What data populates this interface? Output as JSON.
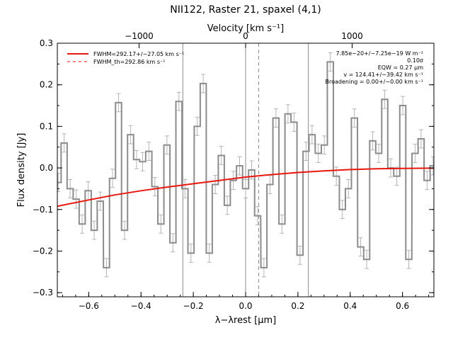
{
  "chart_data": {
    "type": "line",
    "title": "NII122, Raster 21, spaxel (4,1)",
    "xlabel": "λ−λrest [μm]",
    "ylabel": "Flux density [Jy]",
    "top_axis_label": "Velocity [km s⁻¹]",
    "xlim": [
      -0.72,
      0.72
    ],
    "ylim": [
      -0.31,
      0.3
    ],
    "x_ticks": [
      -0.6,
      -0.4,
      -0.2,
      0.0,
      0.2,
      0.4,
      0.6
    ],
    "x_tick_labels": [
      "−0.6",
      "−0.4",
      "−0.2",
      "0.0",
      "0.2",
      "0.4",
      "0.6"
    ],
    "y_ticks": [
      -0.3,
      -0.2,
      -0.1,
      0.0,
      0.1,
      0.2,
      0.3
    ],
    "y_tick_labels": [
      "−0.3",
      "−0.2",
      "−0.1",
      "0.0",
      "0.1",
      "0.2",
      "0.3"
    ],
    "top_ticks": [
      -1000,
      0,
      1000
    ],
    "top_tick_labels": [
      "−1000",
      "0",
      "1000"
    ],
    "top_ticks_x": [
      -0.4074,
      0.0,
      0.4074
    ],
    "vertical_lines": [
      {
        "x": -0.24,
        "style": "solid"
      },
      {
        "x": 0.0,
        "style": "solid"
      },
      {
        "x": 0.05,
        "style": "dashed"
      },
      {
        "x": 0.24,
        "style": "solid"
      }
    ],
    "legend": {
      "position": "top-left",
      "entries": [
        {
          "label": "FWHM=292.17+/−27.05 km s⁻¹",
          "style": "solid",
          "color": "#e8170f"
        },
        {
          "label": "FWHM_th=292.86 km s⁻¹",
          "style": "dashed",
          "color": "#e8170f"
        }
      ]
    },
    "annotations": [
      "7.85e−20+/−7.25e−19 W m⁻²",
      "0.10σ",
      "EQW = 0.27 μm",
      "v = 124.41+/−39.42 km s⁻¹",
      "Broadening = 0.00+/−0.00 km s⁻¹"
    ],
    "series": [
      {
        "type": "step",
        "color": "#8c8c8c",
        "x": [
          -0.717,
          -0.694,
          -0.671,
          -0.648,
          -0.625,
          -0.602,
          -0.579,
          -0.556,
          -0.532,
          -0.509,
          -0.486,
          -0.463,
          -0.44,
          -0.417,
          -0.394,
          -0.37,
          -0.347,
          -0.324,
          -0.301,
          -0.278,
          -0.255,
          -0.232,
          -0.209,
          -0.185,
          -0.162,
          -0.139,
          -0.116,
          -0.093,
          -0.07,
          -0.047,
          -0.023,
          0.0,
          0.023,
          0.046,
          0.07,
          0.093,
          0.116,
          0.139,
          0.162,
          0.185,
          0.208,
          0.231,
          0.254,
          0.278,
          0.301,
          0.324,
          0.347,
          0.37,
          0.393,
          0.416,
          0.44,
          0.463,
          0.486,
          0.509,
          0.532,
          0.555,
          0.578,
          0.601,
          0.624,
          0.648,
          0.671,
          0.694,
          0.717
        ],
        "y": [
          -0.035,
          0.06,
          -0.05,
          -0.075,
          -0.135,
          -0.055,
          -0.15,
          -0.08,
          -0.24,
          -0.025,
          0.157,
          -0.15,
          0.08,
          0.02,
          0.015,
          0.04,
          -0.045,
          -0.135,
          0.055,
          -0.18,
          0.16,
          -0.05,
          -0.205,
          0.1,
          0.203,
          -0.205,
          -0.04,
          0.03,
          -0.09,
          -0.03,
          0.005,
          -0.05,
          -0.005,
          -0.115,
          -0.24,
          -0.04,
          0.12,
          -0.135,
          0.13,
          0.11,
          -0.21,
          0.04,
          0.08,
          0.035,
          0.055,
          0.255,
          -0.02,
          -0.1,
          -0.05,
          0.12,
          -0.19,
          -0.22,
          0.065,
          0.035,
          0.165,
          0.0,
          -0.02,
          0.15,
          -0.22,
          0.035,
          0.07,
          -0.03,
          0.005
        ]
      },
      {
        "type": "line",
        "color": "#e8170f",
        "name": "FWHM=292.17+/−27.05 km s⁻¹",
        "x": [
          -0.72,
          -0.6,
          -0.5,
          -0.4,
          -0.3,
          -0.2,
          -0.1,
          0.0,
          0.1,
          0.2,
          0.3,
          0.4,
          0.5,
          0.6,
          0.72
        ],
        "y": [
          -0.092,
          -0.077,
          -0.065,
          -0.055,
          -0.046,
          -0.038,
          -0.03,
          -0.022,
          -0.016,
          -0.011,
          -0.007,
          -0.004,
          -0.002,
          -0.001,
          -0.0005
        ]
      }
    ]
  }
}
